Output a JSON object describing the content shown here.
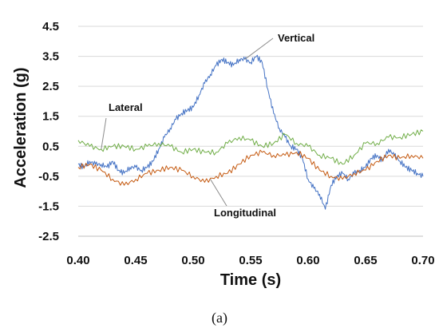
{
  "chart_data": {
    "type": "line",
    "xlabel": "Time (s)",
    "ylabel": "Acceleration (g)",
    "xlim": [
      0.4,
      0.7
    ],
    "ylim": [
      -2.5,
      4.5
    ],
    "xticks": [
      "0.40",
      "0.45",
      "0.50",
      "0.55",
      "0.60",
      "0.65",
      "0.70"
    ],
    "yticks": [
      "4.5",
      "3.5",
      "2.5",
      "1.5",
      "0.5",
      "-0.5",
      "-1.5",
      "-2.5"
    ],
    "grid": "horizontal",
    "series": [
      {
        "name": "Vertical",
        "color": "#4472C4",
        "x": [
          0.4,
          0.405,
          0.41,
          0.415,
          0.42,
          0.425,
          0.43,
          0.435,
          0.44,
          0.445,
          0.45,
          0.455,
          0.46,
          0.465,
          0.47,
          0.475,
          0.48,
          0.485,
          0.49,
          0.495,
          0.5,
          0.505,
          0.51,
          0.515,
          0.52,
          0.525,
          0.53,
          0.535,
          0.54,
          0.545,
          0.55,
          0.555,
          0.56,
          0.565,
          0.57,
          0.575,
          0.58,
          0.585,
          0.59,
          0.595,
          0.6,
          0.605,
          0.61,
          0.615,
          0.62,
          0.625,
          0.63,
          0.635,
          0.64,
          0.645,
          0.65,
          0.655,
          0.66,
          0.665,
          0.67,
          0.675,
          0.68,
          0.685,
          0.69,
          0.695,
          0.7
        ],
        "values": [
          -0.1,
          -0.2,
          0.0,
          -0.1,
          -0.1,
          -0.2,
          0.0,
          -0.3,
          -0.4,
          -0.2,
          -0.2,
          -0.3,
          -0.2,
          0.0,
          0.4,
          0.8,
          1.1,
          1.4,
          1.6,
          1.7,
          1.8,
          2.2,
          2.6,
          2.9,
          3.2,
          3.4,
          3.3,
          3.2,
          3.4,
          3.4,
          3.3,
          3.5,
          3.3,
          2.4,
          1.6,
          1.1,
          0.8,
          0.5,
          0.4,
          0.1,
          -0.6,
          -0.9,
          -1.1,
          -1.6,
          -0.8,
          -0.5,
          -0.4,
          -0.6,
          -0.4,
          -0.3,
          -0.2,
          0.1,
          0.2,
          0.0,
          0.4,
          0.2,
          0.0,
          -0.2,
          -0.3,
          -0.4,
          -0.5
        ]
      },
      {
        "name": "Lateral",
        "color": "#70AD47",
        "x": [
          0.4,
          0.41,
          0.42,
          0.43,
          0.44,
          0.45,
          0.46,
          0.47,
          0.48,
          0.49,
          0.5,
          0.51,
          0.52,
          0.53,
          0.54,
          0.55,
          0.56,
          0.57,
          0.58,
          0.59,
          0.6,
          0.61,
          0.62,
          0.63,
          0.64,
          0.65,
          0.66,
          0.67,
          0.68,
          0.69,
          0.7
        ],
        "values": [
          0.7,
          0.5,
          0.4,
          0.5,
          0.5,
          0.4,
          0.5,
          0.6,
          0.5,
          0.3,
          0.4,
          0.3,
          0.3,
          0.6,
          0.8,
          0.7,
          0.5,
          0.6,
          0.9,
          0.6,
          0.5,
          0.2,
          0.1,
          -0.1,
          0.2,
          0.6,
          0.6,
          0.8,
          0.8,
          0.9,
          1.0
        ]
      },
      {
        "name": "Longitudinal",
        "color": "#C55A11",
        "x": [
          0.4,
          0.41,
          0.42,
          0.43,
          0.44,
          0.45,
          0.46,
          0.47,
          0.48,
          0.49,
          0.5,
          0.51,
          0.52,
          0.53,
          0.54,
          0.55,
          0.56,
          0.57,
          0.58,
          0.59,
          0.6,
          0.61,
          0.62,
          0.63,
          0.64,
          0.65,
          0.66,
          0.67,
          0.68,
          0.69,
          0.7
        ],
        "values": [
          -0.2,
          -0.1,
          -0.3,
          -0.6,
          -0.8,
          -0.6,
          -0.4,
          -0.3,
          -0.2,
          -0.3,
          -0.5,
          -0.7,
          -0.5,
          -0.4,
          -0.1,
          0.2,
          0.3,
          0.2,
          0.2,
          0.3,
          0.1,
          -0.3,
          -0.5,
          -0.6,
          -0.4,
          -0.3,
          0.0,
          0.2,
          0.1,
          0.2,
          0.1
        ]
      }
    ],
    "annotations": [
      {
        "text": "Vertical",
        "series": "Vertical"
      },
      {
        "text": "Lateral",
        "series": "Lateral"
      },
      {
        "text": "Longitudinal",
        "series": "Longitudinal"
      }
    ]
  },
  "caption": "(a)"
}
